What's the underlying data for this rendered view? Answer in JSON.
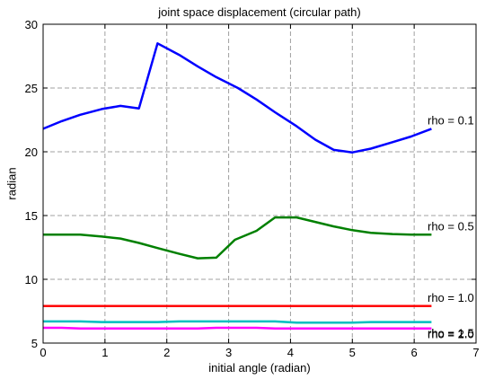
{
  "chart_data": {
    "type": "line",
    "title": "joint space displacement (circular path)",
    "xlabel": "initial angle (radian)",
    "ylabel": "radian",
    "xlim": [
      0,
      7
    ],
    "ylim": [
      5,
      30
    ],
    "xticks": [
      0,
      1,
      2,
      3,
      4,
      5,
      6,
      7
    ],
    "yticks": [
      5,
      10,
      15,
      20,
      25,
      30
    ],
    "grid": true,
    "grid_style": "dashed",
    "series": [
      {
        "name": "rho = 0.1",
        "color": "#0000ff",
        "x": [
          0,
          0.3,
          0.6,
          0.95,
          1.25,
          1.55,
          1.85,
          2.2,
          2.5,
          2.8,
          3.15,
          3.45,
          3.75,
          4.1,
          4.4,
          4.7,
          5.0,
          5.3,
          5.65,
          5.95,
          6.28
        ],
        "y": [
          21.8,
          22.4,
          22.9,
          23.35,
          23.6,
          23.4,
          28.5,
          27.6,
          26.7,
          25.85,
          25.0,
          24.1,
          23.1,
          22.0,
          20.95,
          20.15,
          19.95,
          20.25,
          20.75,
          21.2,
          21.8
        ]
      },
      {
        "name": "rho = 0.5",
        "color": "#008000",
        "x": [
          0,
          0.6,
          0.95,
          1.25,
          1.55,
          1.85,
          2.2,
          2.5,
          2.8,
          3.1,
          3.45,
          3.75,
          4.1,
          4.4,
          4.7,
          5.0,
          5.3,
          5.65,
          5.95,
          6.28
        ],
        "y": [
          13.5,
          13.5,
          13.35,
          13.2,
          12.85,
          12.45,
          12.0,
          11.65,
          11.7,
          13.1,
          13.8,
          14.85,
          14.85,
          14.5,
          14.15,
          13.85,
          13.65,
          13.55,
          13.5,
          13.5
        ]
      },
      {
        "name": "rho = 1.0",
        "color": "#ff0000",
        "x": [
          0,
          6.28
        ],
        "y": [
          7.9,
          7.9
        ]
      },
      {
        "name": "rho = 1.5",
        "color": "#00bfbf",
        "x": [
          0,
          0.6,
          0.95,
          1.55,
          1.85,
          2.2,
          2.8,
          3.45,
          3.75,
          4.1,
          4.7,
          5.0,
          5.3,
          5.95,
          6.28
        ],
        "y": [
          6.7,
          6.7,
          6.65,
          6.65,
          6.65,
          6.7,
          6.7,
          6.7,
          6.7,
          6.6,
          6.6,
          6.6,
          6.65,
          6.65,
          6.65
        ]
      },
      {
        "name": "rho = 2.0",
        "color": "#ff00ff",
        "x": [
          0,
          0.3,
          0.6,
          1.25,
          1.85,
          2.5,
          2.8,
          3.45,
          3.75,
          4.4,
          5.0,
          5.65,
          5.95,
          6.28
        ],
        "y": [
          6.2,
          6.2,
          6.15,
          6.15,
          6.15,
          6.15,
          6.2,
          6.2,
          6.15,
          6.15,
          6.15,
          6.15,
          6.15,
          6.15
        ]
      }
    ]
  }
}
